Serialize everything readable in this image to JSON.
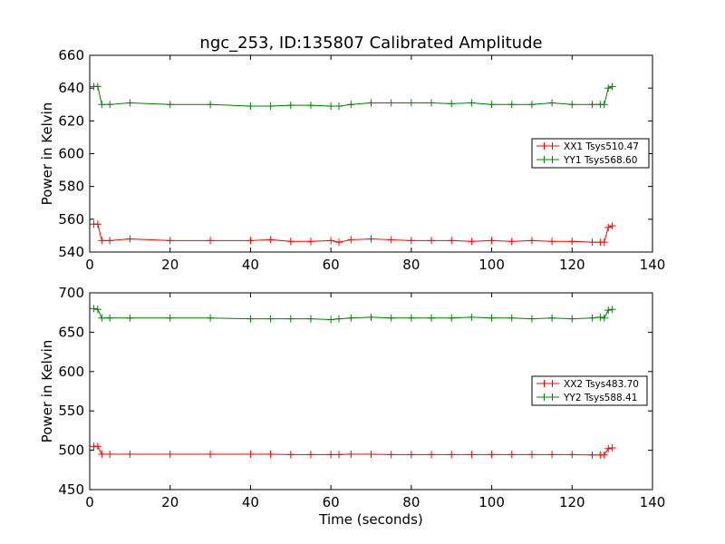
{
  "chart_data": [
    {
      "type": "line",
      "title": "ngc_253, ID:135807 Calibrated Amplitude",
      "xlabel": "",
      "ylabel": "Power in Kelvin",
      "xlim": [
        0,
        140
      ],
      "ylim": [
        540,
        660
      ],
      "xticks": [
        0,
        20,
        40,
        60,
        80,
        100,
        120,
        140
      ],
      "yticks": [
        540,
        560,
        580,
        600,
        620,
        640,
        660
      ],
      "legend_position": "center-right",
      "grid": false,
      "series": [
        {
          "name": "XX1 Tsys510.47",
          "color": "#ff0000",
          "marker": "plus",
          "x": [
            1,
            2,
            3,
            5,
            10,
            20,
            30,
            40,
            45,
            50,
            55,
            60,
            62,
            65,
            70,
            75,
            80,
            85,
            90,
            95,
            100,
            105,
            110,
            115,
            120,
            125,
            127,
            128,
            129,
            130
          ],
          "y": [
            557,
            557,
            547,
            547,
            548,
            547,
            547,
            547,
            547.5,
            546.5,
            546.5,
            547,
            546,
            547.5,
            548,
            547.5,
            547,
            547,
            547,
            546.5,
            547,
            546.5,
            547,
            546.5,
            546.5,
            546,
            546,
            546,
            555,
            556
          ]
        },
        {
          "name": "YY1 Tsys568.60",
          "color": "#008000",
          "marker": "plus",
          "x": [
            1,
            2,
            3,
            5,
            10,
            20,
            30,
            40,
            45,
            50,
            55,
            60,
            62,
            65,
            70,
            75,
            80,
            85,
            90,
            95,
            100,
            105,
            110,
            115,
            120,
            125,
            127,
            128,
            129,
            130
          ],
          "y": [
            641,
            641,
            630,
            630,
            631,
            630,
            630,
            629,
            629,
            629.5,
            629.5,
            629,
            629,
            630,
            631,
            631,
            631,
            631,
            630.5,
            631,
            630,
            630,
            630,
            631,
            630,
            630,
            630,
            630,
            640,
            641
          ]
        }
      ]
    },
    {
      "type": "line",
      "title": "",
      "xlabel": "Time (seconds)",
      "ylabel": "Power in Kelvin",
      "xlim": [
        0,
        140
      ],
      "ylim": [
        450,
        700
      ],
      "xticks": [
        0,
        20,
        40,
        60,
        80,
        100,
        120,
        140
      ],
      "yticks": [
        450,
        500,
        550,
        600,
        650,
        700
      ],
      "legend_position": "center-right",
      "grid": false,
      "series": [
        {
          "name": "XX2 Tsys483.70",
          "color": "#ff0000",
          "marker": "plus",
          "x": [
            1,
            2,
            3,
            5,
            10,
            20,
            30,
            40,
            45,
            50,
            55,
            60,
            62,
            65,
            70,
            75,
            80,
            85,
            90,
            95,
            100,
            105,
            110,
            115,
            120,
            125,
            127,
            128,
            129,
            130
          ],
          "y": [
            505,
            505,
            495,
            495,
            495,
            495,
            495,
            495,
            495,
            494.5,
            494.5,
            494.5,
            494.5,
            495,
            495,
            494.5,
            494.5,
            494.5,
            494.5,
            494.5,
            494.5,
            494.5,
            494.5,
            494.5,
            494.5,
            494,
            494,
            494,
            502,
            503
          ]
        },
        {
          "name": "YY2 Tsys588.41",
          "color": "#008000",
          "marker": "plus",
          "x": [
            1,
            2,
            3,
            5,
            10,
            20,
            30,
            40,
            45,
            50,
            55,
            60,
            62,
            65,
            70,
            75,
            80,
            85,
            90,
            95,
            100,
            105,
            110,
            115,
            120,
            125,
            127,
            128,
            129,
            130
          ],
          "y": [
            680,
            679,
            668,
            668,
            668,
            668,
            668,
            667,
            667,
            667,
            667,
            666,
            667,
            668,
            669,
            668,
            668,
            668,
            668,
            669,
            668,
            668,
            667,
            668,
            667,
            668,
            669,
            668,
            678,
            679
          ]
        }
      ]
    }
  ]
}
